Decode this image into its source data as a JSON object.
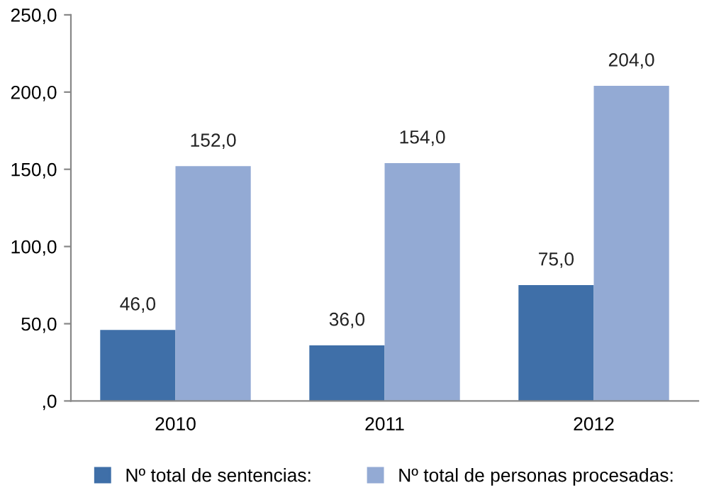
{
  "chart_data": {
    "type": "bar",
    "categories": [
      "2010",
      "2011",
      "2012"
    ],
    "series": [
      {
        "name": "Nº total de sentencias:",
        "color": "#3f6fa8",
        "values": [
          46,
          36,
          75
        ],
        "value_labels": [
          "46,0",
          "36,0",
          "75,0"
        ]
      },
      {
        "name": "Nº total de personas procesadas:",
        "color": "#93aad4",
        "values": [
          152,
          154,
          204
        ],
        "value_labels": [
          "152,0",
          "154,0",
          "204,0"
        ]
      }
    ],
    "ylim": [
      0,
      250
    ],
    "yticks": [
      {
        "value": 0,
        "label": ",0"
      },
      {
        "value": 50,
        "label": "50,0"
      },
      {
        "value": 100,
        "label": "100,0"
      },
      {
        "value": 150,
        "label": "150,0"
      },
      {
        "value": 200,
        "label": "200,0"
      },
      {
        "value": 250,
        "label": "250,0"
      }
    ],
    "grid": false,
    "legend": "bottom"
  }
}
